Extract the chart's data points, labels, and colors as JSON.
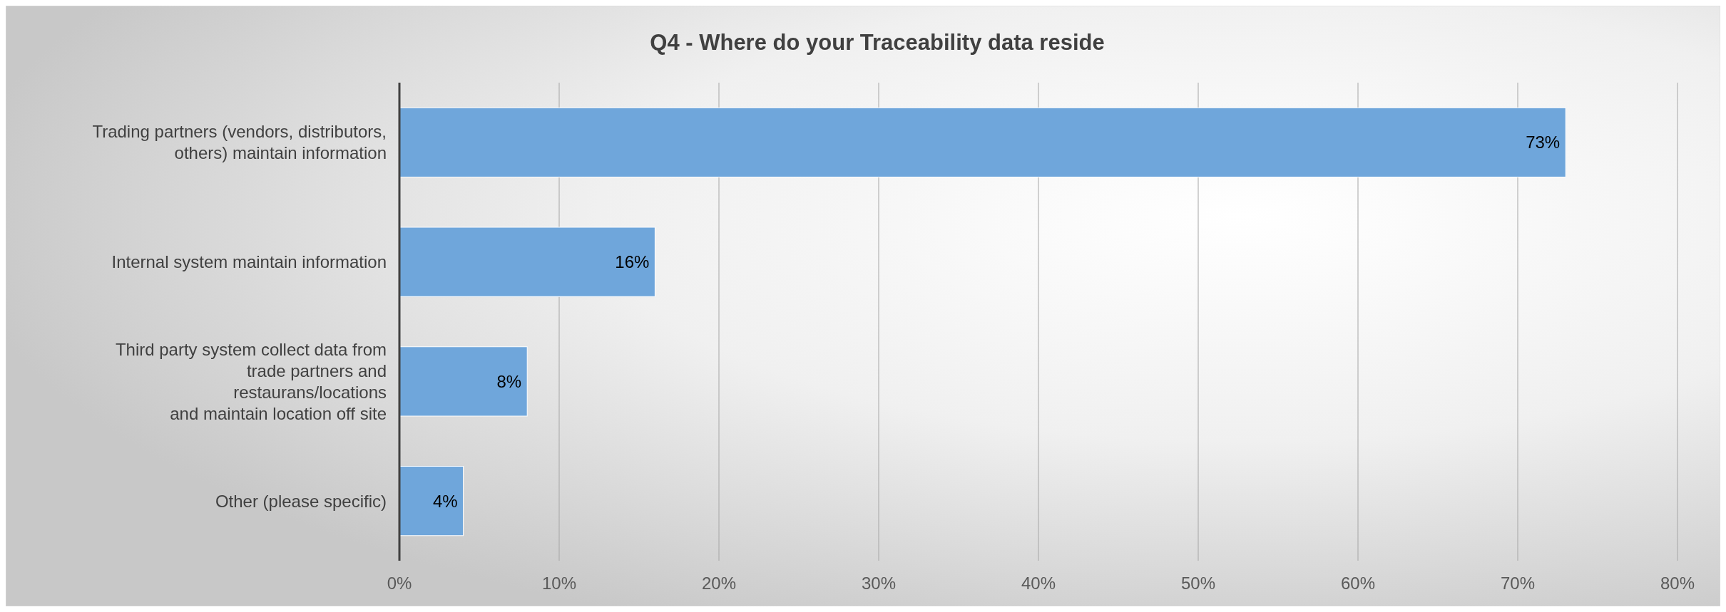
{
  "chart_data": {
    "type": "bar",
    "orientation": "horizontal",
    "title": "Q4 - Where do your Traceability data reside",
    "categories": [
      "Trading partners (vendors, distributors,\nothers) maintain information",
      "Internal system maintain information",
      "Third party system collect data from\ntrade partners and\nrestaurans/locations\nand maintain location off site",
      "Other (please specific)"
    ],
    "values": [
      73,
      16,
      8,
      4
    ],
    "value_labels": [
      "73%",
      "16%",
      "8%",
      "4%"
    ],
    "color": "#6fa6db",
    "xlim": [
      0,
      80
    ],
    "xticks": [
      {
        "value": 0,
        "label": "0%"
      },
      {
        "value": 10,
        "label": "10%"
      },
      {
        "value": 20,
        "label": "20%"
      },
      {
        "value": 30,
        "label": "30%"
      },
      {
        "value": 40,
        "label": "40%"
      },
      {
        "value": 50,
        "label": "50%"
      },
      {
        "value": 60,
        "label": "60%"
      },
      {
        "value": 70,
        "label": "70%"
      },
      {
        "value": 80,
        "label": "80%"
      }
    ],
    "grid": "x"
  }
}
